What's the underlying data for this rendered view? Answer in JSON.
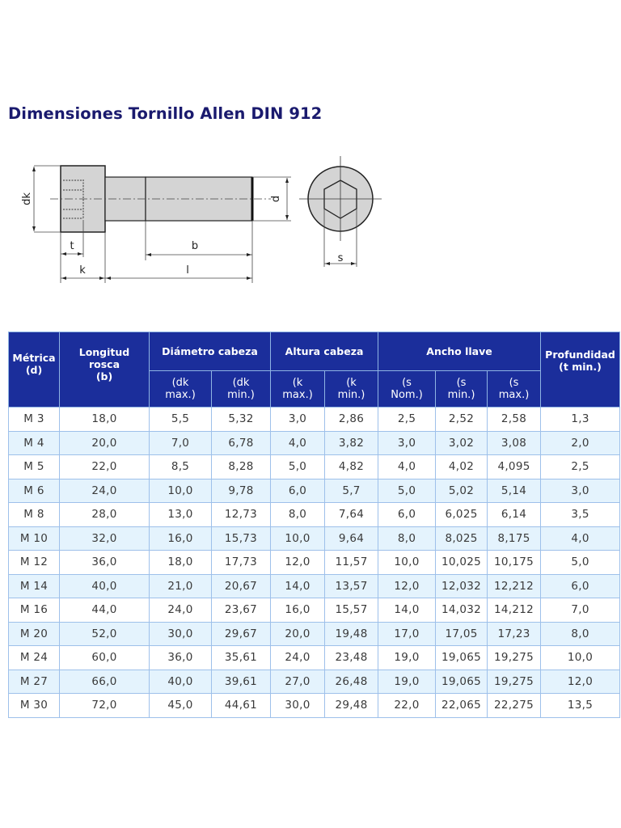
{
  "title": "Dimensiones Tornillo Allen DIN 912",
  "diagram": {
    "side_view_labels": {
      "dk": "dk",
      "d": "d",
      "t": "t",
      "k": "k",
      "b": "b",
      "l": "l"
    },
    "head_view_labels": {
      "s": "s"
    },
    "fill_color": "#d4d4d4",
    "line_color": "#222222"
  },
  "table": {
    "header_color": "#1b2e9b",
    "alt_row_color": "#e4f3fd",
    "border_color": "#9ec0ea",
    "headers": {
      "metrica": {
        "line1": "Métrica",
        "line2": "(d)"
      },
      "longitud": {
        "line1": "Longitud",
        "line2": "rosca",
        "line3": "(b)"
      },
      "diametro": "Diámetro cabeza",
      "altura": "Altura cabeza",
      "ancho": "Ancho llave",
      "profundidad": {
        "line1": "Profundidad",
        "line2": "(t min.)"
      },
      "sub": [
        {
          "line1": "(dk",
          "line2": "max.)"
        },
        {
          "line1": "(dk",
          "line2": "min.)"
        },
        {
          "line1": "(k",
          "line2": "max.)"
        },
        {
          "line1": "(k",
          "line2": "min.)"
        },
        {
          "line1": "(s",
          "line2": "Nom.)"
        },
        {
          "line1": "(s",
          "line2": "min.)"
        },
        {
          "line1": "(s",
          "line2": "max.)"
        }
      ]
    },
    "rows": [
      [
        "M 3",
        "18,0",
        "5,5",
        "5,32",
        "3,0",
        "2,86",
        "2,5",
        "2,52",
        "2,58",
        "1,3"
      ],
      [
        "M 4",
        "20,0",
        "7,0",
        "6,78",
        "4,0",
        "3,82",
        "3,0",
        "3,02",
        "3,08",
        "2,0"
      ],
      [
        "M 5",
        "22,0",
        "8,5",
        "8,28",
        "5,0",
        "4,82",
        "4,0",
        "4,02",
        "4,095",
        "2,5"
      ],
      [
        "M 6",
        "24,0",
        "10,0",
        "9,78",
        "6,0",
        "5,7",
        "5,0",
        "5,02",
        "5,14",
        "3,0"
      ],
      [
        "M 8",
        "28,0",
        "13,0",
        "12,73",
        "8,0",
        "7,64",
        "6,0",
        "6,025",
        "6,14",
        "3,5"
      ],
      [
        "M 10",
        "32,0",
        "16,0",
        "15,73",
        "10,0",
        "9,64",
        "8,0",
        "8,025",
        "8,175",
        "4,0"
      ],
      [
        "M 12",
        "36,0",
        "18,0",
        "17,73",
        "12,0",
        "11,57",
        "10,0",
        "10,025",
        "10,175",
        "5,0"
      ],
      [
        "M 14",
        "40,0",
        "21,0",
        "20,67",
        "14,0",
        "13,57",
        "12,0",
        "12,032",
        "12,212",
        "6,0"
      ],
      [
        "M 16",
        "44,0",
        "24,0",
        "23,67",
        "16,0",
        "15,57",
        "14,0",
        "14,032",
        "14,212",
        "7,0"
      ],
      [
        "M 20",
        "52,0",
        "30,0",
        "29,67",
        "20,0",
        "19,48",
        "17,0",
        "17,05",
        "17,23",
        "8,0"
      ],
      [
        "M 24",
        "60,0",
        "36,0",
        "35,61",
        "24,0",
        "23,48",
        "19,0",
        "19,065",
        "19,275",
        "10,0"
      ],
      [
        "M 27",
        "66,0",
        "40,0",
        "39,61",
        "27,0",
        "26,48",
        "19,0",
        "19,065",
        "19,275",
        "12,0"
      ],
      [
        "M 30",
        "72,0",
        "45,0",
        "44,61",
        "30,0",
        "29,48",
        "22,0",
        "22,065",
        "22,275",
        "13,5"
      ]
    ]
  }
}
